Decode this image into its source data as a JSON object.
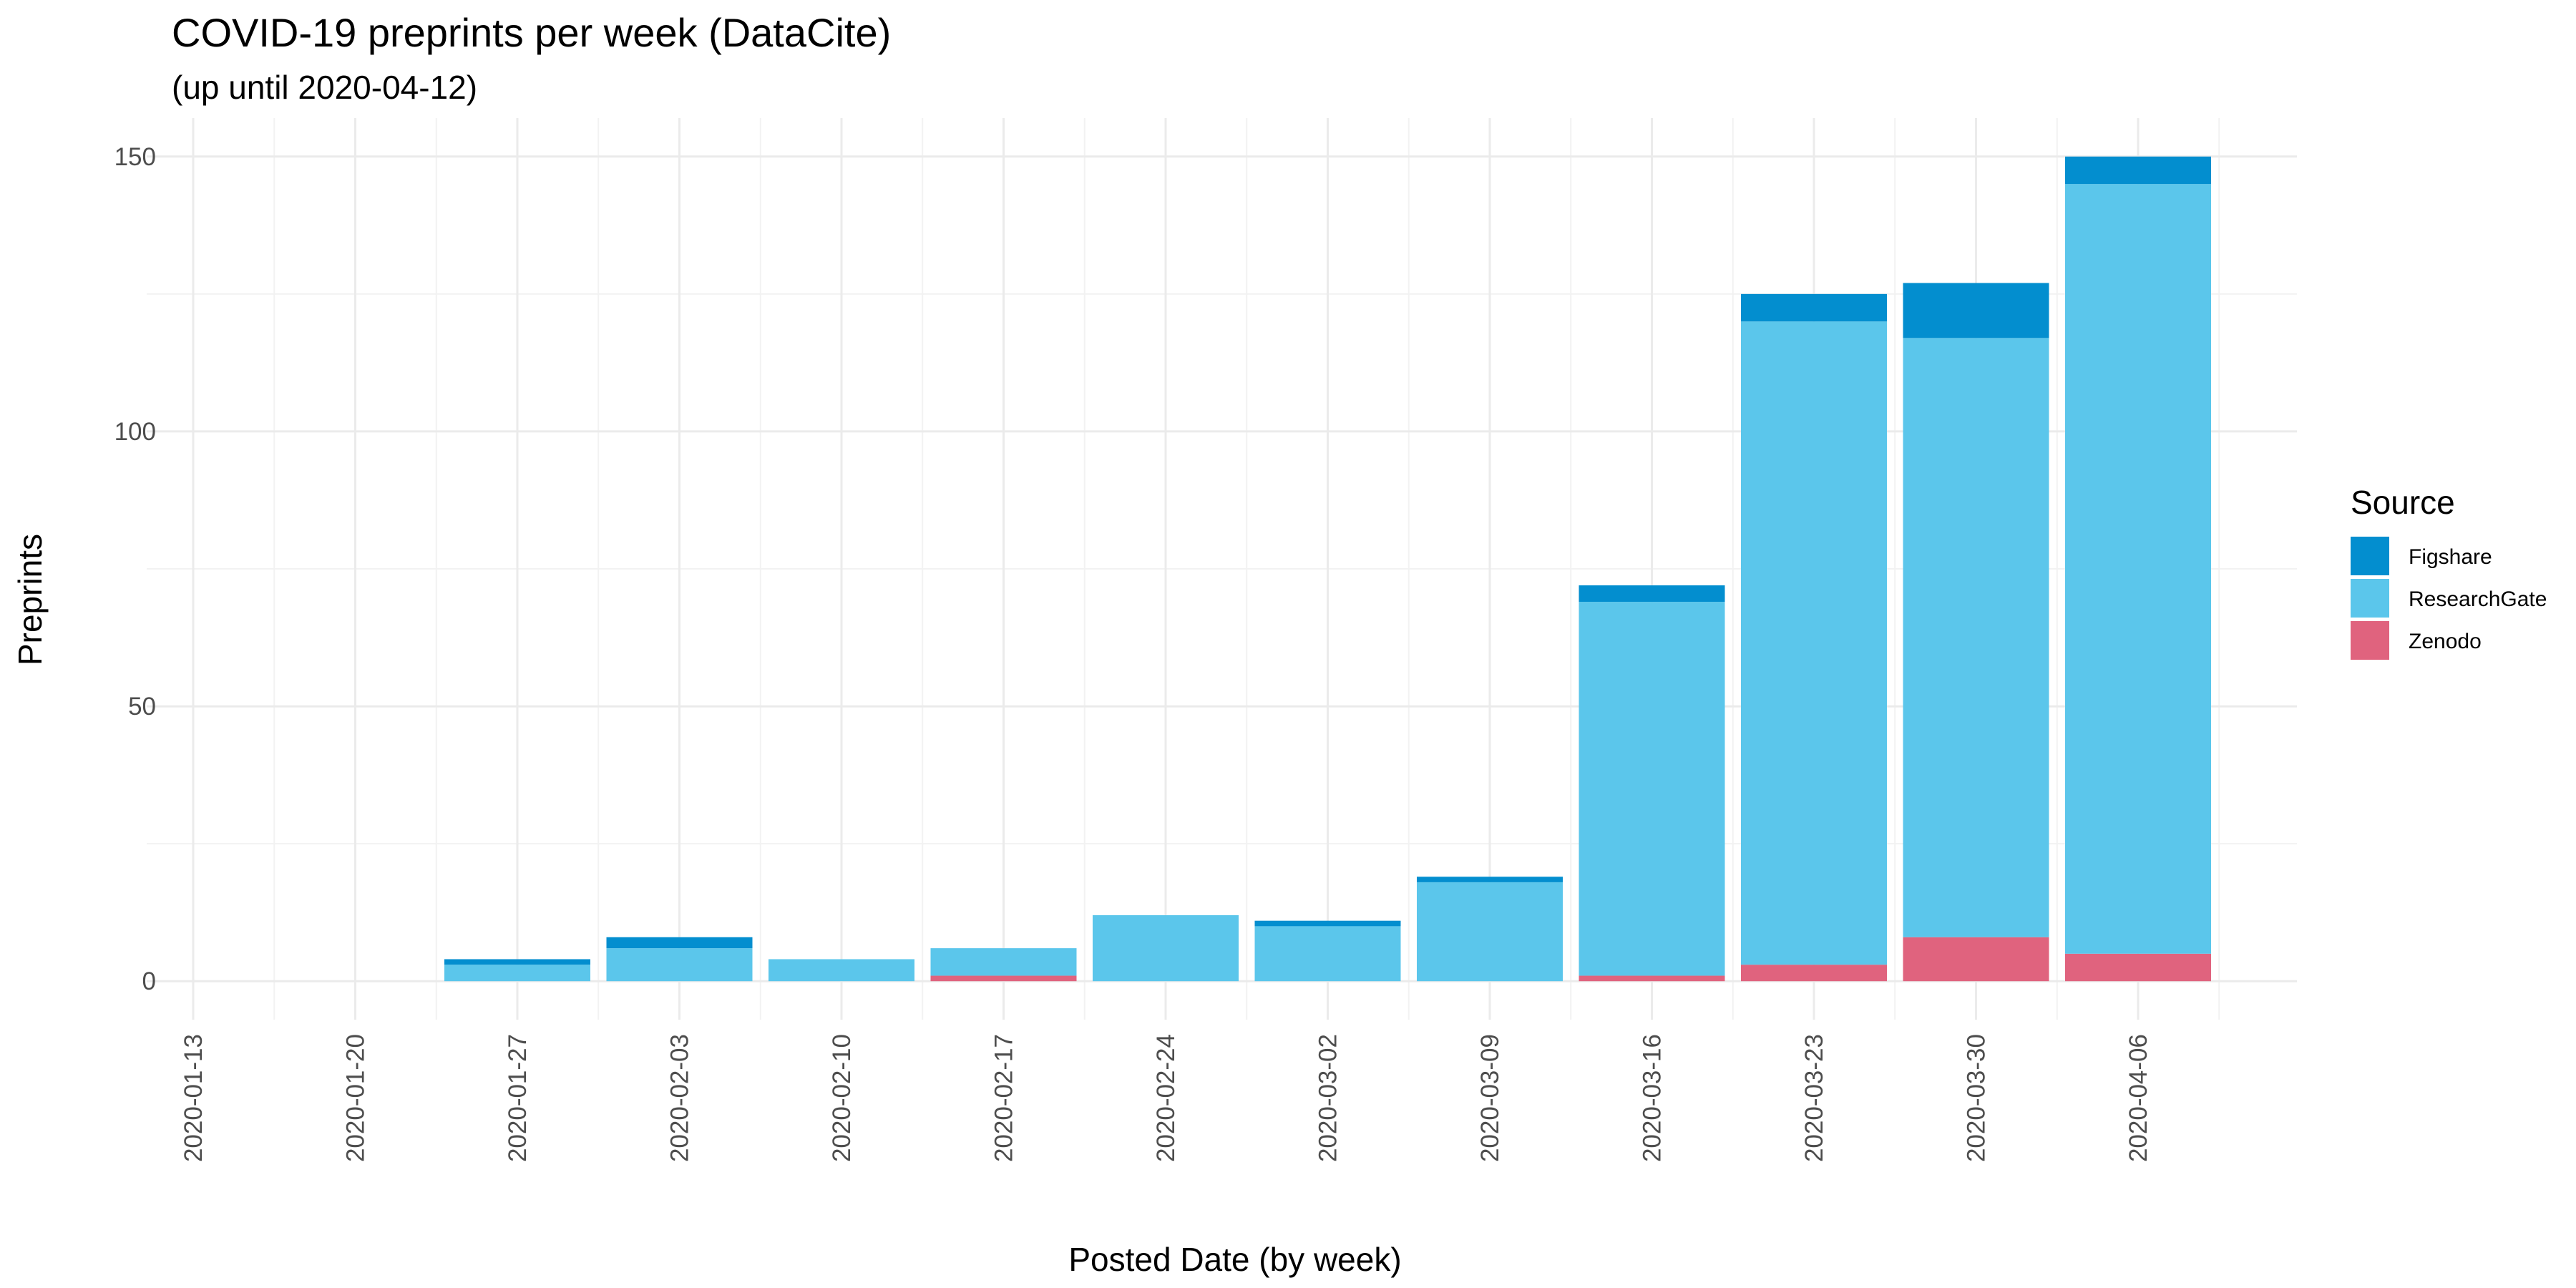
{
  "chart_data": {
    "type": "bar",
    "stacked": true,
    "title": "COVID-19 preprints per week (DataCite)",
    "subtitle": "(up until 2020-04-12)",
    "xlabel": "Posted Date (by week)",
    "ylabel": "Preprints",
    "ylim": [
      -7,
      157
    ],
    "yticks": [
      0,
      50,
      100,
      150
    ],
    "grid": true,
    "legend_title": "Source",
    "legend_position": "right",
    "categories": [
      "2020-01-13",
      "2020-01-20",
      "2020-01-27",
      "2020-02-03",
      "2020-02-10",
      "2020-02-17",
      "2020-02-24",
      "2020-03-02",
      "2020-03-09",
      "2020-03-16",
      "2020-03-23",
      "2020-03-30",
      "2020-04-06"
    ],
    "series": [
      {
        "name": "Zenodo",
        "color": "#E0637E",
        "values": [
          0,
          0,
          0,
          0,
          0,
          1,
          0,
          0,
          0,
          1,
          3,
          8,
          5
        ]
      },
      {
        "name": "ResearchGate",
        "color": "#5BC6EB",
        "values": [
          0,
          0,
          3,
          6,
          4,
          5,
          12,
          10,
          18,
          68,
          117,
          109,
          140
        ]
      },
      {
        "name": "Figshare",
        "color": "#038ECF",
        "values": [
          0,
          0,
          1,
          2,
          0,
          0,
          0,
          1,
          1,
          3,
          5,
          10,
          5
        ]
      }
    ],
    "legend_order": [
      "Figshare",
      "ResearchGate",
      "Zenodo"
    ]
  }
}
